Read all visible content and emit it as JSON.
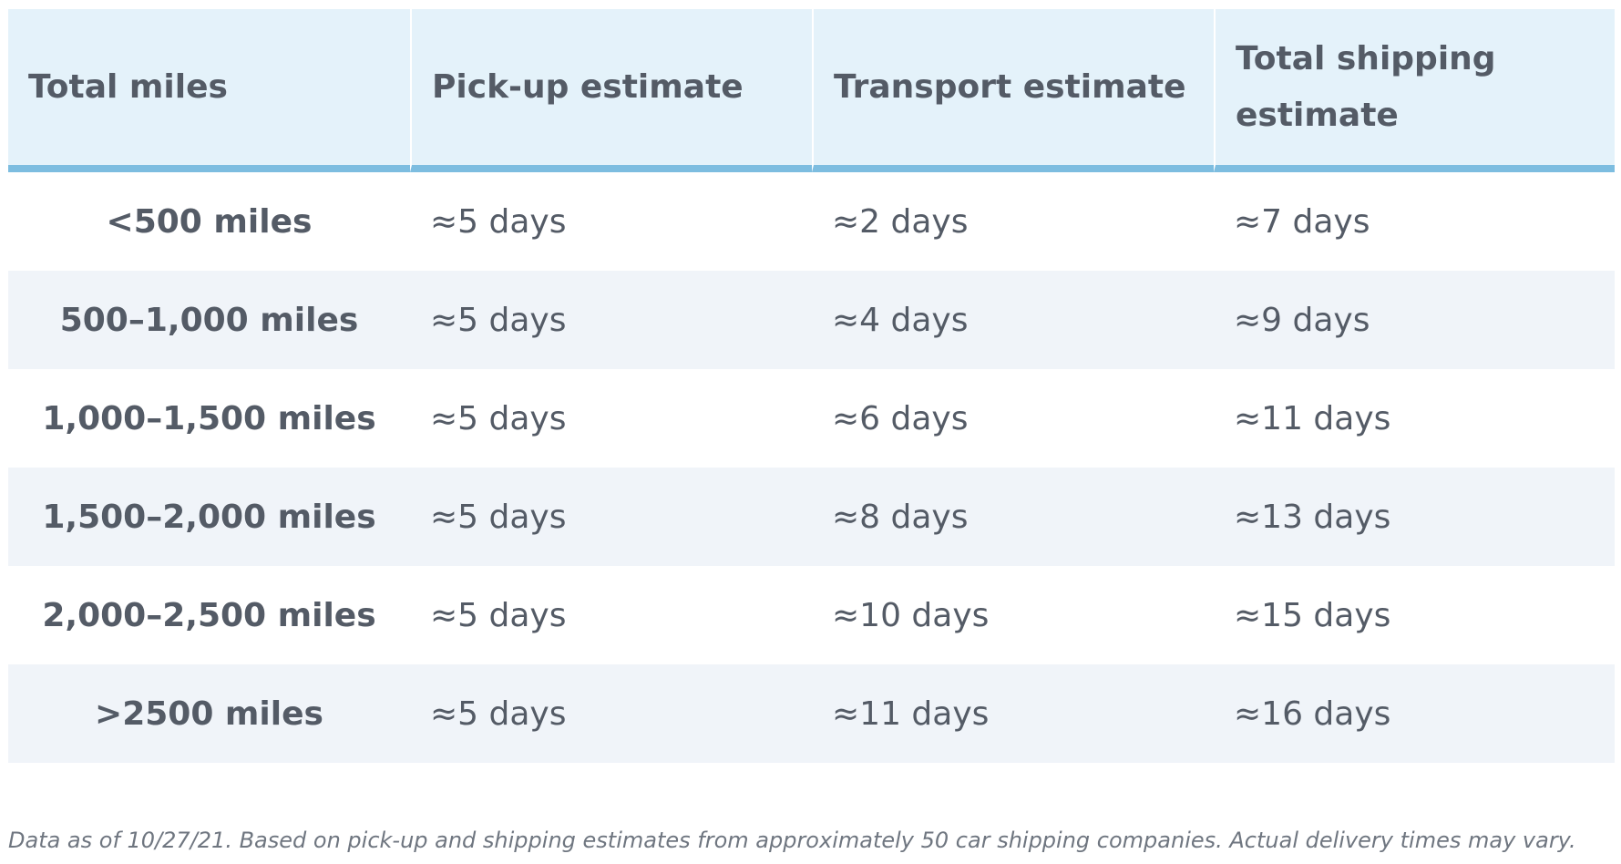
{
  "table": {
    "headers": [
      "Total miles",
      "Pick-up estimate",
      "Transport estimate",
      "Total shipping estimate"
    ],
    "rows": [
      [
        "<500 miles",
        "≈5 days",
        "≈2 days",
        "≈7 days"
      ],
      [
        "500–1,000 miles",
        "≈5 days",
        "≈4 days",
        "≈9 days"
      ],
      [
        "1,000–1,500 miles",
        "≈5 days",
        "≈6 days",
        "≈11 days"
      ],
      [
        "1,500–2,000 miles",
        "≈5 days",
        "≈8 days",
        "≈13 days"
      ],
      [
        "2,000–2,500 miles",
        "≈5 days",
        "≈10 days",
        "≈15 days"
      ],
      [
        ">2500 miles",
        "≈5 days",
        "≈11 days",
        "≈16 days"
      ]
    ]
  },
  "footnote": "Data as of 10/27/21. Based on pick-up and shipping estimates from approximately 50 car shipping companies. Actual delivery times may vary.",
  "colors": {
    "header_bg": "#e4f2fa",
    "header_rule": "#7dbde0",
    "stripe_bg": "#f0f4f9",
    "text": "#545b66"
  }
}
